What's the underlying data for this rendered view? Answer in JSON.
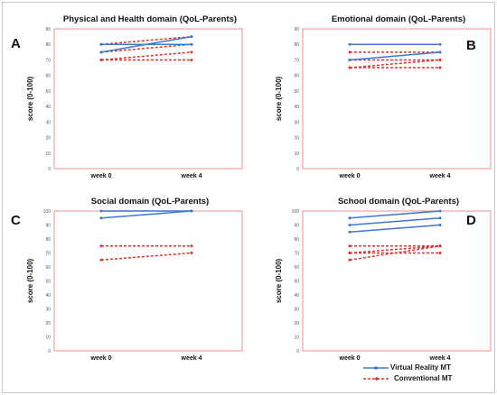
{
  "panel_letters": {
    "A": "A",
    "B": "B",
    "C": "C",
    "D": "D"
  },
  "colors": {
    "virtual_reality": "#3a78d4",
    "conventional": "#e03030",
    "plot_border": "#f2a0a0",
    "axis_text": "#555555"
  },
  "legend": {
    "virtual_reality_label": "Virtual Reality MT",
    "conventional_label": "Conventional MT"
  },
  "chart_data": [
    {
      "type": "line",
      "title": "Physical and Health domain (QoL-Parents)",
      "xlabel": "",
      "ylabel": "score (0-100)",
      "categories": [
        "week 0",
        "week 4"
      ],
      "ylim": [
        0,
        90
      ],
      "yticks": [
        0,
        10,
        20,
        30,
        40,
        50,
        60,
        70,
        80,
        90
      ],
      "series": [
        {
          "group": "Virtual Reality MT",
          "values": [
            75,
            85
          ]
        },
        {
          "group": "Virtual Reality MT",
          "values": [
            80,
            80
          ]
        },
        {
          "group": "Conventional MT",
          "values": [
            80,
            85
          ]
        },
        {
          "group": "Conventional MT",
          "values": [
            75,
            80
          ]
        },
        {
          "group": "Conventional MT",
          "values": [
            70,
            75
          ]
        },
        {
          "group": "Conventional MT",
          "values": [
            70,
            70
          ]
        }
      ]
    },
    {
      "type": "line",
      "title": "Emotional domain (QoL-Parents)",
      "xlabel": "",
      "ylabel": "score (0-100)",
      "categories": [
        "week 0",
        "week 4"
      ],
      "ylim": [
        0,
        90
      ],
      "yticks": [
        0,
        10,
        20,
        30,
        40,
        50,
        60,
        70,
        80,
        90
      ],
      "series": [
        {
          "group": "Virtual Reality MT",
          "values": [
            80,
            80
          ]
        },
        {
          "group": "Virtual Reality MT",
          "values": [
            70,
            75
          ]
        },
        {
          "group": "Conventional MT",
          "values": [
            75,
            75
          ]
        },
        {
          "group": "Conventional MT",
          "values": [
            70,
            70
          ]
        },
        {
          "group": "Conventional MT",
          "values": [
            65,
            70
          ]
        },
        {
          "group": "Conventional MT",
          "values": [
            65,
            65
          ]
        }
      ]
    },
    {
      "type": "line",
      "title": "Social domain (QoL-Parents)",
      "xlabel": "",
      "ylabel": "score (0-100)",
      "categories": [
        "week 0",
        "week 4"
      ],
      "ylim": [
        0,
        100
      ],
      "yticks": [
        0,
        10,
        20,
        30,
        40,
        50,
        60,
        70,
        80,
        90,
        100
      ],
      "series": [
        {
          "group": "Virtual Reality MT",
          "values": [
            100,
            100
          ]
        },
        {
          "group": "Virtual Reality MT",
          "values": [
            95,
            100
          ]
        },
        {
          "group": "Conventional MT",
          "values": [
            75,
            75
          ]
        },
        {
          "group": "Conventional MT",
          "values": [
            65,
            70
          ]
        }
      ]
    },
    {
      "type": "line",
      "title": "School domain (QoL-Parents)",
      "xlabel": "",
      "ylabel": "score (0-100)",
      "categories": [
        "week 0",
        "week 4"
      ],
      "ylim": [
        0,
        100
      ],
      "yticks": [
        0,
        10,
        20,
        30,
        40,
        50,
        60,
        70,
        80,
        90,
        100
      ],
      "series": [
        {
          "group": "Virtual Reality MT",
          "values": [
            95,
            100
          ]
        },
        {
          "group": "Virtual Reality MT",
          "values": [
            90,
            95
          ]
        },
        {
          "group": "Virtual Reality MT",
          "values": [
            85,
            90
          ]
        },
        {
          "group": "Conventional MT",
          "values": [
            75,
            75
          ]
        },
        {
          "group": "Conventional MT",
          "values": [
            70,
            75
          ]
        },
        {
          "group": "Conventional MT",
          "values": [
            70,
            70
          ]
        },
        {
          "group": "Conventional MT",
          "values": [
            65,
            75
          ]
        }
      ]
    }
  ]
}
